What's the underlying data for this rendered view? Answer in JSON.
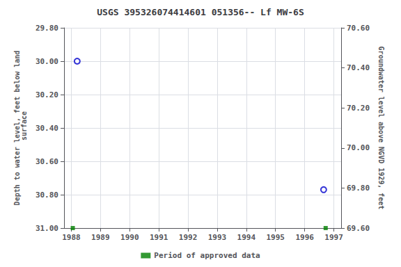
{
  "chart_data": {
    "type": "scatter",
    "title": "USGS 395326074414601 051356-- Lf MW-6S",
    "ylabel": "Depth to water level, feet below land\n surface",
    "y2label": "Groundwater level above NGVD 1929, feet",
    "xlim": [
      1987.75,
      1997.25
    ],
    "ylim": [
      31.0,
      29.8
    ],
    "y2lim": [
      69.6,
      70.6
    ],
    "xticks": [
      1988,
      1989,
      1990,
      1991,
      1992,
      1993,
      1994,
      1995,
      1996,
      1997
    ],
    "yticks": [
      {
        "value": 29.8,
        "label": "29.80"
      },
      {
        "value": 30.0,
        "label": "30.00"
      },
      {
        "value": 30.2,
        "label": "30.20"
      },
      {
        "value": 30.4,
        "label": "30.40"
      },
      {
        "value": 30.6,
        "label": "30.60"
      },
      {
        "value": 30.8,
        "label": "30.80"
      },
      {
        "value": 31.0,
        "label": "31.00"
      }
    ],
    "y2ticks": [
      {
        "value": 69.6,
        "label": "69.60"
      },
      {
        "value": 69.8,
        "label": "69.80"
      },
      {
        "value": 70.0,
        "label": "70.00"
      },
      {
        "value": 70.2,
        "label": "70.20"
      },
      {
        "value": 70.4,
        "label": "70.40"
      },
      {
        "value": 70.6,
        "label": "70.60"
      }
    ],
    "grid": true,
    "legend": "bottom",
    "series": [
      {
        "color": "#0000cc",
        "marker": "open_circle",
        "x": [
          1988.2,
          1996.65
        ],
        "values": [
          30.0,
          30.77
        ]
      },
      {
        "name": "Period of approved data",
        "color": "#008000",
        "marker": "square",
        "x": [
          1988.05,
          1996.72
        ],
        "values": [
          31.0,
          31.0
        ]
      }
    ]
  }
}
